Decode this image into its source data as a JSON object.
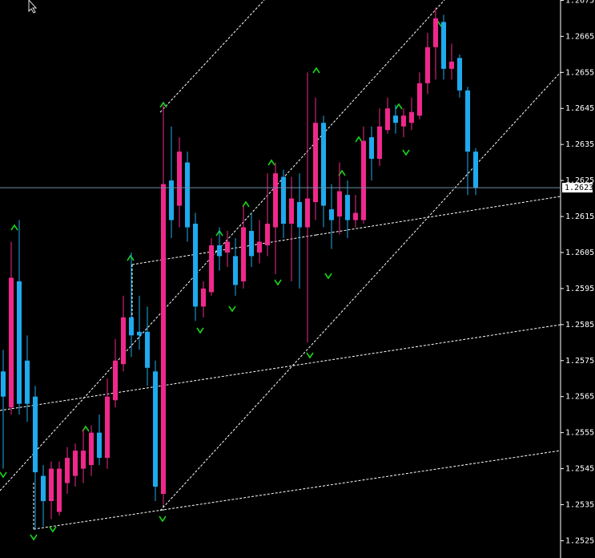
{
  "chart_data": {
    "type": "candlestick",
    "up_color": "#f0288c",
    "down_color": "#1eaaee",
    "grid": false,
    "ylim": [
      1.25202,
      1.26751
    ],
    "yticks": [
      1.2525,
      1.2535,
      1.2545,
      1.2555,
      1.2565,
      1.2575,
      1.2585,
      1.2595,
      1.2605,
      1.2615,
      1.2625,
      1.2635,
      1.2645,
      1.2655,
      1.2665,
      1.2675
    ],
    "last_price": 1.2623,
    "open": [
      1.2572,
      1.2562,
      1.2597,
      1.2575,
      1.2565,
      1.2543,
      1.2536,
      1.2533,
      1.2541,
      1.2543,
      1.2545,
      1.2546,
      1.2555,
      1.2548,
      1.2564,
      1.2574,
      1.2587,
      1.2583,
      1.2583,
      1.2572,
      1.2538,
      1.2625,
      1.2618,
      1.263,
      1.2613,
      1.259,
      1.2594,
      1.2607,
      1.2605,
      1.2604,
      1.2597,
      1.2611,
      1.2605,
      1.2607,
      1.2612,
      1.2626,
      1.2613,
      1.2619,
      1.2612,
      1.2619,
      1.2641,
      1.2617,
      1.2615,
      1.2621,
      1.2614,
      1.2614,
      1.2637,
      1.2631,
      1.2639,
      1.2643,
      1.264,
      1.2641,
      1.2643,
      1.2652,
      1.2662,
      1.2669,
      1.2656,
      1.2659,
      1.265,
      1.2633
    ],
    "high": [
      1.2578,
      1.2608,
      1.2614,
      1.2582,
      1.2568,
      1.2546,
      1.2547,
      1.2547,
      1.2551,
      1.2552,
      1.2556,
      1.2557,
      1.256,
      1.257,
      1.2581,
      1.2593,
      1.2605,
      1.2593,
      1.259,
      1.2575,
      1.2646,
      1.264,
      1.2637,
      1.2633,
      1.2616,
      1.2597,
      1.2609,
      1.2612,
      1.2611,
      1.2609,
      1.2618,
      1.2616,
      1.2614,
      1.2627,
      1.263,
      1.2628,
      1.2626,
      1.2627,
      1.2655,
      1.2648,
      1.2643,
      1.2624,
      1.263,
      1.2625,
      1.2621,
      1.264,
      1.264,
      1.2645,
      1.2648,
      1.2646,
      1.2645,
      1.2648,
      1.2655,
      1.2666,
      1.2673,
      1.2671,
      1.2663,
      1.266,
      1.2651,
      1.2634
    ],
    "low": [
      1.2545,
      1.256,
      1.256,
      1.2558,
      1.2528,
      1.2529,
      1.2531,
      1.2532,
      1.2538,
      1.254,
      1.2541,
      1.2543,
      1.2546,
      1.2545,
      1.2562,
      1.2572,
      1.2576,
      1.2578,
      1.2568,
      1.2536,
      1.2535,
      1.2609,
      1.2612,
      1.2608,
      1.2586,
      1.2587,
      1.2593,
      1.26,
      1.2601,
      1.2593,
      1.2595,
      1.2601,
      1.2602,
      1.2604,
      1.2599,
      1.2609,
      1.2597,
      1.2595,
      1.258,
      1.2614,
      1.2612,
      1.2606,
      1.261,
      1.2609,
      1.2612,
      1.2613,
      1.2625,
      1.2629,
      1.2638,
      1.2638,
      1.2637,
      1.2639,
      1.2642,
      1.2649,
      1.2653,
      1.2653,
      1.2653,
      1.2648,
      1.2621,
      1.2621
    ],
    "close": [
      1.2565,
      1.2598,
      1.2563,
      1.2563,
      1.2544,
      1.2536,
      1.2545,
      1.2545,
      1.2548,
      1.255,
      1.255,
      1.2555,
      1.2548,
      1.2565,
      1.2575,
      1.2587,
      1.2582,
      1.2582,
      1.2573,
      1.254,
      1.2624,
      1.2614,
      1.2633,
      1.2612,
      1.259,
      1.2595,
      1.2607,
      1.2604,
      1.2608,
      1.2596,
      1.2612,
      1.2604,
      1.2608,
      1.2613,
      1.2627,
      1.2613,
      1.262,
      1.2612,
      1.262,
      1.2641,
      1.2618,
      1.2614,
      1.2622,
      1.2614,
      1.2616,
      1.2636,
      1.2631,
      1.264,
      1.2645,
      1.2641,
      1.2643,
      1.2644,
      1.2652,
      1.2662,
      1.267,
      1.2656,
      1.2658,
      1.265,
      1.2633,
      1.2623
    ]
  }
}
